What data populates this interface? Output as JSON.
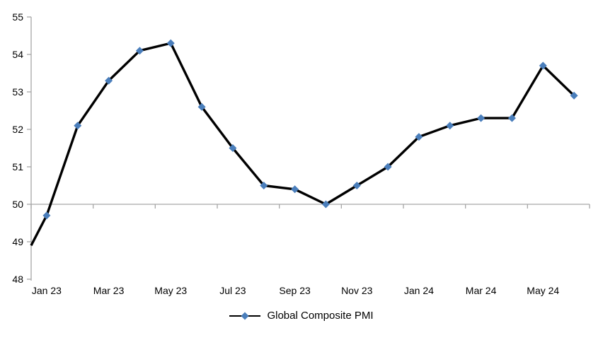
{
  "chart_data": {
    "type": "line",
    "title": "",
    "categories": [
      "Jan 23",
      "Feb 23",
      "Mar 23",
      "Apr 23",
      "May 23",
      "Jun 23",
      "Jul 23",
      "Aug 23",
      "Sep 23",
      "Oct 23",
      "Nov 23",
      "Dec 23",
      "Jan 24",
      "Feb 24",
      "Mar 24",
      "Apr 24",
      "May 24",
      "Jun 24"
    ],
    "series": [
      {
        "name": "Global Composite PMI",
        "values": [
          49.7,
          52.1,
          53.3,
          54.1,
          54.3,
          52.6,
          51.5,
          50.5,
          50.4,
          50.0,
          50.5,
          51.0,
          51.8,
          52.1,
          52.3,
          52.3,
          53.7,
          52.9
        ]
      }
    ],
    "line_start_at_left_edge": 48.9,
    "x_tick_labels": [
      "Jan 23",
      "Mar 23",
      "May 23",
      "Jul 23",
      "Sep 23",
      "Nov 23",
      "Jan 24",
      "Mar 24",
      "May 24"
    ],
    "y_ticks": [
      55,
      54,
      53,
      52,
      51,
      50,
      49,
      48
    ],
    "ylim": [
      48,
      55
    ],
    "x_axis_cross_value": 50,
    "grid": "off",
    "legend_position": "bottom",
    "marker_shape": "diamond",
    "colors": {
      "line": "#000000",
      "marker": "#4A7EBB",
      "axis": "#A6A6A6",
      "text": "#000000",
      "background": "#FFFFFF"
    }
  },
  "legend": {
    "label": "Global Composite PMI"
  }
}
